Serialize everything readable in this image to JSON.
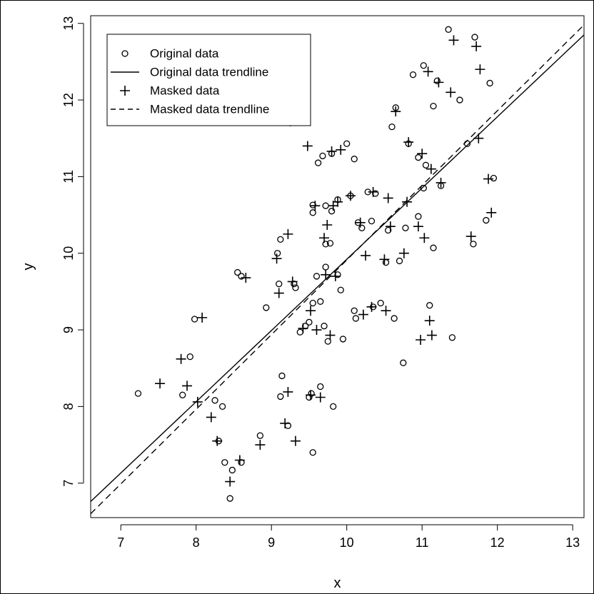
{
  "chart_data": {
    "type": "scatter",
    "title": "",
    "xlabel": "x",
    "ylabel": "y",
    "xlim": [
      6.6,
      13.15
    ],
    "ylim": [
      6.55,
      13.1
    ],
    "xticks": [
      7,
      8,
      9,
      10,
      11,
      12,
      13
    ],
    "yticks": [
      7,
      8,
      9,
      10,
      11,
      12,
      13
    ],
    "xtick_labels": [
      "7",
      "8",
      "9",
      "10",
      "11",
      "12",
      "13"
    ],
    "ytick_labels": [
      "7",
      "8",
      "9",
      "10",
      "11",
      "12",
      "13"
    ],
    "grid": false,
    "legend_position": "top-left",
    "series": [
      {
        "name": "Original data",
        "type": "scatter",
        "marker": "circle",
        "color": "#000000",
        "points": [
          [
            7.23,
            8.17
          ],
          [
            7.82,
            8.15
          ],
          [
            7.92,
            8.65
          ],
          [
            7.98,
            9.14
          ],
          [
            8.25,
            8.08
          ],
          [
            8.3,
            7.55
          ],
          [
            8.35,
            8.0
          ],
          [
            8.38,
            7.27
          ],
          [
            8.45,
            6.8
          ],
          [
            8.48,
            7.17
          ],
          [
            8.6,
            7.27
          ],
          [
            8.55,
            9.75
          ],
          [
            8.6,
            9.7
          ],
          [
            8.85,
            7.62
          ],
          [
            8.93,
            9.29
          ],
          [
            9.08,
            10.0
          ],
          [
            9.1,
            9.6
          ],
          [
            9.12,
            10.18
          ],
          [
            9.14,
            8.4
          ],
          [
            9.12,
            8.13
          ],
          [
            9.22,
            7.75
          ],
          [
            9.25,
            11.7
          ],
          [
            9.32,
            9.55
          ],
          [
            9.3,
            9.6
          ],
          [
            9.38,
            8.97
          ],
          [
            9.45,
            9.05
          ],
          [
            9.5,
            9.1
          ],
          [
            9.5,
            8.12
          ],
          [
            9.53,
            8.17
          ],
          [
            9.55,
            10.53
          ],
          [
            9.55,
            10.63
          ],
          [
            9.55,
            7.4
          ],
          [
            9.55,
            9.35
          ],
          [
            9.6,
            9.7
          ],
          [
            9.62,
            11.18
          ],
          [
            9.65,
            9.37
          ],
          [
            9.65,
            8.26
          ],
          [
            9.68,
            11.27
          ],
          [
            9.7,
            9.05
          ],
          [
            9.72,
            9.82
          ],
          [
            9.72,
            10.62
          ],
          [
            9.72,
            10.12
          ],
          [
            9.75,
            8.85
          ],
          [
            9.78,
            10.13
          ],
          [
            9.8,
            11.3
          ],
          [
            9.8,
            10.55
          ],
          [
            9.82,
            8.0
          ],
          [
            9.88,
            10.7
          ],
          [
            9.88,
            9.72
          ],
          [
            9.92,
            9.52
          ],
          [
            9.95,
            8.88
          ],
          [
            10.0,
            11.43
          ],
          [
            10.05,
            10.75
          ],
          [
            10.1,
            11.23
          ],
          [
            10.1,
            9.25
          ],
          [
            10.12,
            9.15
          ],
          [
            10.15,
            10.4
          ],
          [
            10.2,
            10.33
          ],
          [
            10.28,
            10.8
          ],
          [
            10.33,
            10.42
          ],
          [
            10.35,
            9.3
          ],
          [
            10.38,
            10.78
          ],
          [
            10.45,
            9.35
          ],
          [
            10.52,
            9.88
          ],
          [
            10.55,
            10.3
          ],
          [
            10.6,
            11.65
          ],
          [
            10.63,
            9.15
          ],
          [
            10.65,
            11.9
          ],
          [
            10.7,
            9.9
          ],
          [
            10.75,
            8.57
          ],
          [
            10.78,
            10.33
          ],
          [
            10.82,
            11.43
          ],
          [
            10.88,
            12.33
          ],
          [
            10.95,
            11.25
          ],
          [
            10.95,
            10.48
          ],
          [
            11.02,
            12.45
          ],
          [
            11.02,
            10.85
          ],
          [
            11.05,
            11.15
          ],
          [
            11.1,
            9.32
          ],
          [
            11.15,
            11.92
          ],
          [
            11.15,
            10.07
          ],
          [
            11.2,
            12.25
          ],
          [
            11.25,
            10.88
          ],
          [
            11.35,
            12.92
          ],
          [
            11.4,
            8.9
          ],
          [
            11.5,
            12.0
          ],
          [
            11.6,
            11.43
          ],
          [
            11.68,
            10.12
          ],
          [
            11.7,
            12.82
          ],
          [
            11.85,
            10.43
          ],
          [
            11.9,
            12.22
          ],
          [
            11.95,
            10.98
          ]
        ]
      },
      {
        "name": "Original data trendline",
        "type": "line",
        "line_style": "solid",
        "color": "#000000",
        "points": [
          [
            6.6,
            6.76
          ],
          [
            13.15,
            12.85
          ]
        ]
      },
      {
        "name": "Masked data",
        "type": "scatter",
        "marker": "plus",
        "color": "#000000",
        "points": [
          [
            7.52,
            8.3
          ],
          [
            7.8,
            8.62
          ],
          [
            7.88,
            8.27
          ],
          [
            8.02,
            8.06
          ],
          [
            8.08,
            9.16
          ],
          [
            8.2,
            7.86
          ],
          [
            8.28,
            7.55
          ],
          [
            8.45,
            7.02
          ],
          [
            8.58,
            7.3
          ],
          [
            8.66,
            9.68
          ],
          [
            8.85,
            7.5
          ],
          [
            9.07,
            9.93
          ],
          [
            9.1,
            9.48
          ],
          [
            9.18,
            7.78
          ],
          [
            9.22,
            8.19
          ],
          [
            9.22,
            10.25
          ],
          [
            9.28,
            9.63
          ],
          [
            9.32,
            7.55
          ],
          [
            9.42,
            9.02
          ],
          [
            9.48,
            11.4
          ],
          [
            9.52,
            8.15
          ],
          [
            9.52,
            9.25
          ],
          [
            9.58,
            10.62
          ],
          [
            9.6,
            9.0
          ],
          [
            9.65,
            8.12
          ],
          [
            9.7,
            10.2
          ],
          [
            9.72,
            9.72
          ],
          [
            9.74,
            10.37
          ],
          [
            9.78,
            8.93
          ],
          [
            9.8,
            11.33
          ],
          [
            9.82,
            10.62
          ],
          [
            9.85,
            9.7
          ],
          [
            9.88,
            10.67
          ],
          [
            9.92,
            11.35
          ],
          [
            10.05,
            10.75
          ],
          [
            10.18,
            10.4
          ],
          [
            10.22,
            9.2
          ],
          [
            10.25,
            9.97
          ],
          [
            10.33,
            9.3
          ],
          [
            10.35,
            10.8
          ],
          [
            10.52,
            9.25
          ],
          [
            10.5,
            9.92
          ],
          [
            10.55,
            10.72
          ],
          [
            10.58,
            10.35
          ],
          [
            10.65,
            11.85
          ],
          [
            10.76,
            10.0
          ],
          [
            10.8,
            10.67
          ],
          [
            10.82,
            11.45
          ],
          [
            10.95,
            10.35
          ],
          [
            10.98,
            8.87
          ],
          [
            11.0,
            11.3
          ],
          [
            11.03,
            10.2
          ],
          [
            11.08,
            12.37
          ],
          [
            11.1,
            9.12
          ],
          [
            11.12,
            11.1
          ],
          [
            11.13,
            8.93
          ],
          [
            11.22,
            12.23
          ],
          [
            11.25,
            10.92
          ],
          [
            11.38,
            12.1
          ],
          [
            11.42,
            12.78
          ],
          [
            11.65,
            10.22
          ],
          [
            11.72,
            12.7
          ],
          [
            11.75,
            11.5
          ],
          [
            11.77,
            12.4
          ],
          [
            11.88,
            10.97
          ],
          [
            11.92,
            10.53
          ]
        ]
      },
      {
        "name": "Masked data trendline",
        "type": "line",
        "line_style": "dashed",
        "color": "#000000",
        "points": [
          [
            6.6,
            6.6
          ],
          [
            13.15,
            12.98
          ]
        ]
      }
    ]
  }
}
